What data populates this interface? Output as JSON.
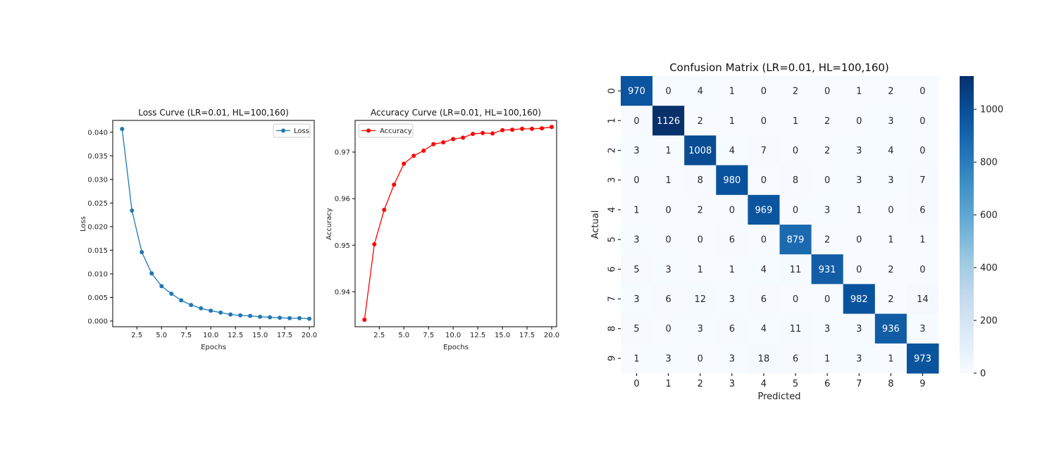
{
  "chart_data": [
    {
      "type": "line",
      "title": "Loss Curve (LR=0.01, HL=100,160)",
      "xlabel": "Epochs",
      "ylabel": "Loss",
      "xlim": [
        0.05,
        20.5
      ],
      "ylim": [
        -0.0012,
        0.0425
      ],
      "xticks": [
        2.5,
        5.0,
        7.5,
        10.0,
        12.5,
        15.0,
        17.5,
        20.0
      ],
      "xtick_labels": [
        "2.5",
        "5.0",
        "7.5",
        "10.0",
        "12.5",
        "15.0",
        "17.5",
        "20.0"
      ],
      "yticks": [
        0.0,
        0.005,
        0.01,
        0.015,
        0.02,
        0.025,
        0.03,
        0.035,
        0.04
      ],
      "ytick_labels": [
        "0.000",
        "0.005",
        "0.010",
        "0.015",
        "0.020",
        "0.025",
        "0.030",
        "0.035",
        "0.040"
      ],
      "legend_position": "upper right",
      "color": "#1f77b4",
      "series": [
        {
          "name": "Loss",
          "x": [
            1,
            2,
            3,
            4,
            5,
            6,
            7,
            8,
            9,
            10,
            11,
            12,
            13,
            14,
            15,
            16,
            17,
            18,
            19,
            20
          ],
          "y": [
            0.0407,
            0.0234,
            0.0146,
            0.0101,
            0.0074,
            0.0058,
            0.0044,
            0.0034,
            0.0027,
            0.0022,
            0.0018,
            0.0014,
            0.0012,
            0.0011,
            0.0009,
            0.0008,
            0.0007,
            0.0006,
            0.0006,
            0.0005
          ]
        }
      ]
    },
    {
      "type": "line",
      "title": "Accuracy Curve (LR=0.01, HL=100,160)",
      "xlabel": "Epochs",
      "ylabel": "Accuracy",
      "xlim": [
        0.05,
        20.5
      ],
      "ylim": [
        0.9325,
        0.9768
      ],
      "xticks": [
        2.5,
        5.0,
        7.5,
        10.0,
        12.5,
        15.0,
        17.5,
        20.0
      ],
      "xtick_labels": [
        "2.5",
        "5.0",
        "7.5",
        "10.0",
        "12.5",
        "15.0",
        "17.5",
        "20.0"
      ],
      "yticks": [
        0.94,
        0.95,
        0.96,
        0.97
      ],
      "ytick_labels": [
        "0.94",
        "0.95",
        "0.96",
        "0.97"
      ],
      "legend_position": "upper left",
      "color": "#ff0000",
      "series": [
        {
          "name": "Accuracy",
          "x": [
            1,
            2,
            3,
            4,
            5,
            6,
            7,
            8,
            9,
            10,
            11,
            12,
            13,
            14,
            15,
            16,
            17,
            18,
            19,
            20
          ],
          "y": [
            0.934,
            0.9502,
            0.9576,
            0.963,
            0.9675,
            0.9692,
            0.9703,
            0.9717,
            0.9721,
            0.9728,
            0.9731,
            0.9739,
            0.9741,
            0.974,
            0.9747,
            0.9748,
            0.975,
            0.975,
            0.9751,
            0.9754
          ]
        }
      ]
    },
    {
      "type": "heatmap",
      "title": "Confusion Matrix (LR=0.01, HL=100,160)",
      "xlabel": "Predicted",
      "ylabel": "Actual",
      "x_labels": [
        "0",
        "1",
        "2",
        "3",
        "4",
        "5",
        "6",
        "7",
        "8",
        "9"
      ],
      "y_labels": [
        "0",
        "1",
        "2",
        "3",
        "4",
        "5",
        "6",
        "7",
        "8",
        "9"
      ],
      "colormap": "Blues",
      "vmin": 0,
      "vmax": 1126,
      "colorbar_ticks": [
        0,
        200,
        400,
        600,
        800,
        1000
      ],
      "colorbar_tick_labels": [
        "0",
        "200",
        "400",
        "600",
        "800",
        "1000"
      ],
      "matrix": [
        [
          970,
          0,
          4,
          1,
          0,
          2,
          0,
          1,
          2,
          0
        ],
        [
          0,
          1126,
          2,
          1,
          0,
          1,
          2,
          0,
          3,
          0
        ],
        [
          3,
          1,
          1008,
          4,
          7,
          0,
          2,
          3,
          4,
          0
        ],
        [
          0,
          1,
          8,
          980,
          0,
          8,
          0,
          3,
          3,
          7
        ],
        [
          1,
          0,
          2,
          0,
          969,
          0,
          3,
          1,
          0,
          6
        ],
        [
          3,
          0,
          0,
          6,
          0,
          879,
          2,
          0,
          1,
          1
        ],
        [
          5,
          3,
          1,
          1,
          4,
          11,
          931,
          0,
          2,
          0
        ],
        [
          3,
          6,
          12,
          3,
          6,
          0,
          0,
          982,
          2,
          14
        ],
        [
          5,
          0,
          3,
          6,
          4,
          11,
          3,
          3,
          936,
          3
        ],
        [
          1,
          3,
          0,
          3,
          18,
          6,
          1,
          3,
          1,
          973
        ]
      ]
    }
  ]
}
